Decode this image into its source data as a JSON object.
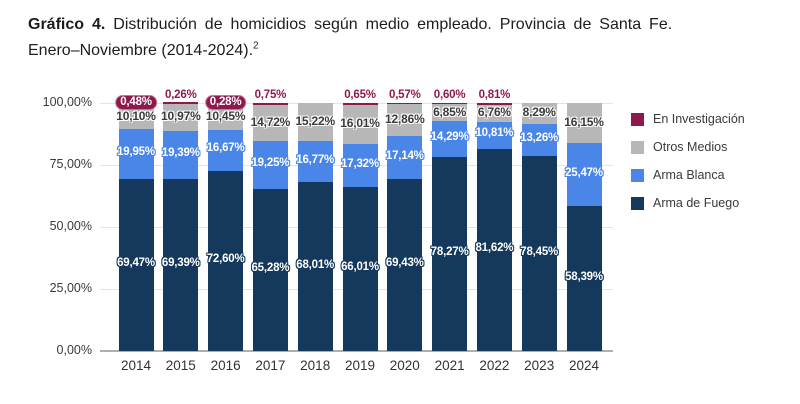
{
  "title": {
    "prefix": "Gráfico 4.",
    "line1": "Distribución de homicidios según medio empleado. Provincia de Santa Fe.",
    "line2": "Enero–Noviembre (2014-2024).",
    "footnote_marker": "2"
  },
  "colors": {
    "arma_de_fuego": "#14395C",
    "arma_blanca": "#4A86E8",
    "otros_medios": "#B7B7B7",
    "en_investigacion": "#8E1A4D",
    "gridline": "#E4E4E4",
    "baseline": "#AEAEAE",
    "axis_text": "#3A3A3A"
  },
  "chart_data": {
    "type": "bar",
    "stacked": true,
    "percent": true,
    "title": "Distribución de homicidios según medio empleado. Provincia de Santa Fe. Enero–Noviembre (2014-2024).",
    "categories": [
      "2014",
      "2015",
      "2016",
      "2017",
      "2018",
      "2019",
      "2020",
      "2021",
      "2022",
      "2023",
      "2024"
    ],
    "xlabel": "",
    "ylabel": "",
    "y_axis": {
      "min": 0,
      "max": 100,
      "ticks": [
        "0,00%",
        "25,00%",
        "50,00%",
        "75,00%",
        "100,00%"
      ],
      "grid": true
    },
    "legend_position": "right",
    "legend_order": [
      "En Investigación",
      "Otros Medios",
      "Arma Blanca",
      "Arma de Fuego"
    ],
    "series": [
      {
        "name": "Arma de Fuego",
        "color": "#14395C",
        "values": [
          69.47,
          69.39,
          72.6,
          65.28,
          68.01,
          66.01,
          69.43,
          78.27,
          81.62,
          78.45,
          58.39
        ],
        "labels": [
          "69,47%",
          "69,39%",
          "72,60%",
          "65,28%",
          "68,01%",
          "66,01%",
          "69,43%",
          "78,27%",
          "81,62%",
          "78,45%",
          "58,39%"
        ]
      },
      {
        "name": "Arma Blanca",
        "color": "#4A86E8",
        "values": [
          19.95,
          19.39,
          16.67,
          19.25,
          16.77,
          17.32,
          17.14,
          14.29,
          10.81,
          13.26,
          25.47
        ],
        "labels": [
          "19,95%",
          "19,39%",
          "16,67%",
          "19,25%",
          "16,77%",
          "17,32%",
          "17,14%",
          "14,29%",
          "10,81%",
          "13,26%",
          "25,47%"
        ]
      },
      {
        "name": "Otros Medios",
        "color": "#B7B7B7",
        "values": [
          10.1,
          10.97,
          10.45,
          14.72,
          15.22,
          16.01,
          12.86,
          6.85,
          6.76,
          8.29,
          16.15
        ],
        "labels": [
          "10,10%",
          "10,97%",
          "10,45%",
          "14,72%",
          "15,22%",
          "16,01%",
          "12,86%",
          "6,85%",
          "6,76%",
          "8,29%",
          "16,15%"
        ]
      },
      {
        "name": "En Investigación",
        "color": "#8E1A4D",
        "values": [
          0.48,
          0.26,
          0.28,
          0.75,
          null,
          0.65,
          0.57,
          0.6,
          0.81,
          null,
          null
        ],
        "labels": [
          "0,48%",
          "0,26%",
          "0,28%",
          "0,75%",
          null,
          "0,65%",
          "0,57%",
          "0,60%",
          "0,81%",
          null,
          null
        ],
        "label_style": [
          "pill",
          "plain",
          "pill",
          "plain",
          null,
          "plain",
          "plain",
          "plain",
          "plain",
          null,
          null
        ]
      }
    ]
  }
}
